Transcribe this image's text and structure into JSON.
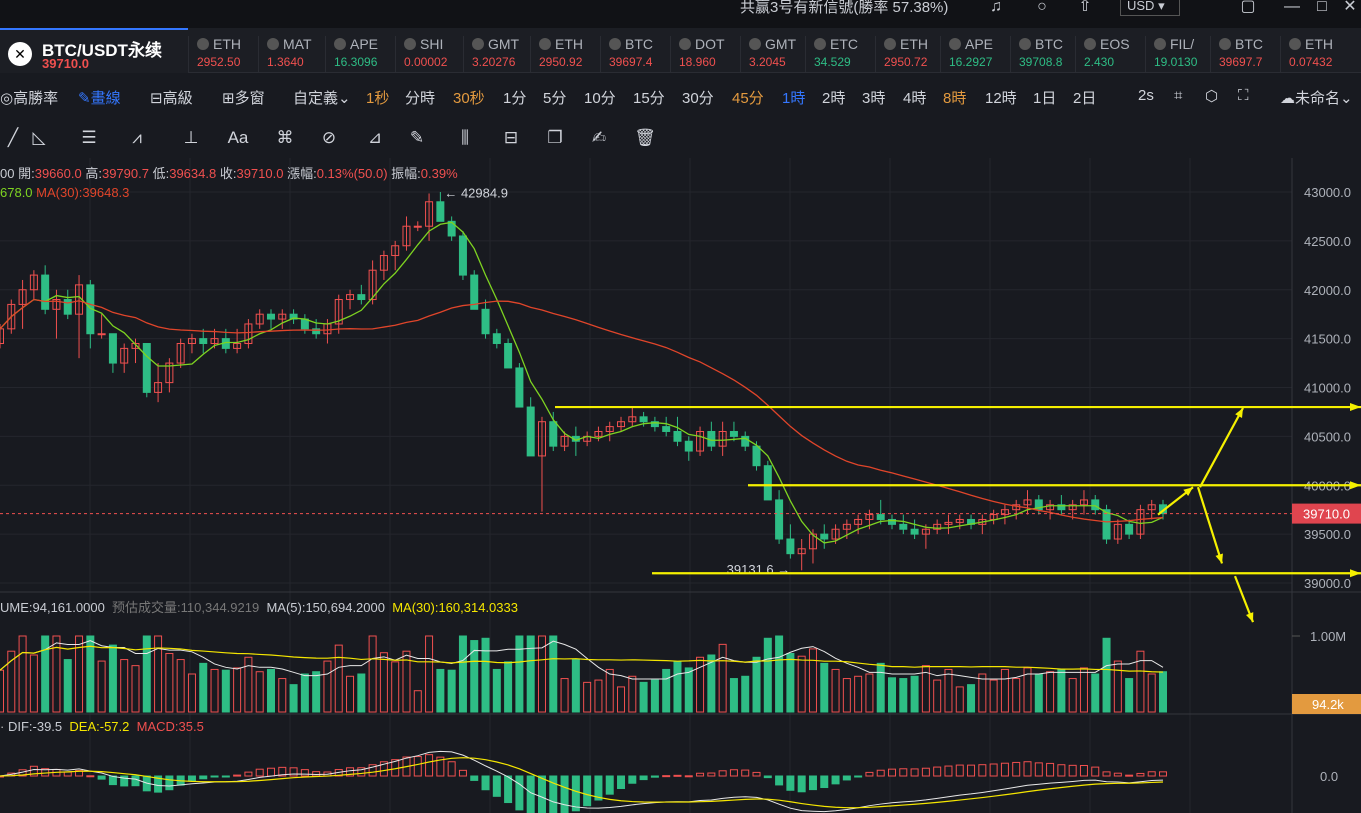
{
  "topbar": {
    "promo": "共赢3号有新信號(勝率 57.38%)",
    "currency": "USD"
  },
  "symbol": {
    "name": "BTC/USDT永续",
    "price": "39710.0",
    "logo": "✕"
  },
  "tickers": [
    {
      "sym": "ETH",
      "price": "2952.50",
      "color": "#f0504f"
    },
    {
      "sym": "MAT",
      "price": "1.3640",
      "color": "#f0504f"
    },
    {
      "sym": "APE",
      "price": "16.3096",
      "color": "#2ebd85"
    },
    {
      "sym": "SHI",
      "price": "0.00002",
      "color": "#f0504f"
    },
    {
      "sym": "GMT",
      "price": "3.20276",
      "color": "#f0504f"
    },
    {
      "sym": "ETH",
      "price": "2950.92",
      "color": "#f0504f"
    },
    {
      "sym": "BTC",
      "price": "39697.4",
      "color": "#f0504f"
    },
    {
      "sym": "DOT",
      "price": "18.960",
      "color": "#f0504f"
    },
    {
      "sym": "GMT",
      "price": "3.2045",
      "color": "#f0504f"
    },
    {
      "sym": "ETC",
      "price": "34.529",
      "color": "#2ebd85"
    },
    {
      "sym": "ETH",
      "price": "2950.72",
      "color": "#f0504f"
    },
    {
      "sym": "APE",
      "price": "16.2927",
      "color": "#2ebd85"
    },
    {
      "sym": "BTC",
      "price": "39708.8",
      "color": "#2ebd85"
    },
    {
      "sym": "EOS",
      "price": "2.430",
      "color": "#2ebd85"
    },
    {
      "sym": "FIL/",
      "price": "19.0130",
      "color": "#2ebd85"
    },
    {
      "sym": "BTC",
      "price": "39697.7",
      "color": "#f0504f"
    },
    {
      "sym": "ETH",
      "price": "0.07432",
      "color": "#f0504f"
    }
  ],
  "intervals": {
    "left": [
      "高勝率",
      "畫線",
      "高級",
      "多窗",
      "自定義"
    ],
    "times": [
      "1秒",
      "分時",
      "30秒",
      "1分",
      "5分",
      "10分",
      "15分",
      "30分",
      "45分",
      "1時",
      "2時",
      "3時",
      "4時",
      "8時",
      "12時",
      "1日",
      "2日"
    ],
    "highlight_orange": [
      "1秒",
      "30秒",
      "45分",
      "8時"
    ],
    "highlight_blue": [
      "畫線",
      "1時"
    ],
    "right_label": "2s",
    "template": "未命名"
  },
  "tools": [
    "line-tool",
    "ray-tool",
    "parallel-tool",
    "wave-tool",
    "fib-tool",
    "text-tool",
    "brush-tool",
    "magnet-tool",
    "ruler-tool",
    "pen-tool",
    "compare-tool",
    "lock-tool",
    "copy-tool",
    "edit-tool",
    "delete-tool"
  ],
  "ohlc": {
    "open_label": "開:",
    "open": "39660.0",
    "high_label": "高:",
    "high": "39790.7",
    "low_label": "低:",
    "low": "39634.8",
    "close_label": "收:",
    "close": "39710.0",
    "change_label": "漲幅:",
    "change": "0.13%(50.0)",
    "amp_label": "振幅:",
    "amp": "0.39%",
    "prefix": "00"
  },
  "ma_legend": {
    "ma5": "678.0",
    "ma30_label": "MA(30):",
    "ma30": "39648.3"
  },
  "vol_legend": {
    "vol_label": "UME:",
    "vol": "94,161.0000",
    "est_label": "预估成交量:",
    "est": "110,344.9219",
    "ma5_label": "MA(5):",
    "ma5": "150,694.2000",
    "ma30_label": "MA(30):",
    "ma30": "160,314.0333"
  },
  "macd_legend": {
    "dif_label": "DIF:",
    "dif": "-39.5",
    "dea_label": "DEA:",
    "dea": "-57.2",
    "macd_label": "MACD:",
    "macd": "35.5"
  },
  "colors": {
    "up": "#f0504f",
    "down": "#2ebd85",
    "ma5": "#7ed321",
    "ma30": "#e0452a",
    "annot": "#f5f000",
    "bg": "#181a20"
  },
  "chart_data": {
    "type": "candlestick",
    "price_axis": {
      "ticks": [
        43000,
        42500,
        42000,
        41500,
        41000,
        40500,
        40000,
        39500,
        39000
      ],
      "range": [
        38880,
        43250
      ],
      "tick_labels": [
        "43000.0",
        "42500.0",
        "42000.0",
        "41500.0",
        "41000.0",
        "40500.0",
        "40000.0",
        "39500.0",
        "39000.0"
      ]
    },
    "high_label": "42984.9",
    "low_label": "39131.6",
    "last_price": "39710.0",
    "candles_ohlc": [
      [
        41450,
        41650,
        41400,
        41600
      ],
      [
        41600,
        41900,
        41550,
        41850
      ],
      [
        41850,
        42100,
        41600,
        42000
      ],
      [
        42000,
        42200,
        41900,
        42150
      ],
      [
        42150,
        42250,
        41750,
        41800
      ],
      [
        41800,
        42000,
        41500,
        41900
      ],
      [
        41900,
        42000,
        41700,
        41750
      ],
      [
        41750,
        42150,
        41300,
        42050
      ],
      [
        42050,
        42100,
        41400,
        41550
      ],
      [
        41550,
        41750,
        41500,
        41550
      ],
      [
        41550,
        41550,
        41150,
        41250
      ],
      [
        41250,
        41450,
        41150,
        41400
      ],
      [
        41400,
        41500,
        41250,
        41450
      ],
      [
        41450,
        41450,
        40900,
        40950
      ],
      [
        40950,
        41250,
        40850,
        41050
      ],
      [
        41050,
        41300,
        40950,
        41250
      ],
      [
        41250,
        41500,
        41200,
        41450
      ],
      [
        41450,
        41550,
        41350,
        41500
      ],
      [
        41500,
        41600,
        41350,
        41450
      ],
      [
        41450,
        41600,
        41400,
        41500
      ],
      [
        41500,
        41600,
        41350,
        41400
      ],
      [
        41400,
        41600,
        41350,
        41450
      ],
      [
        41450,
        41700,
        41400,
        41650
      ],
      [
        41650,
        41800,
        41600,
        41750
      ],
      [
        41750,
        41800,
        41600,
        41700
      ],
      [
        41700,
        41800,
        41600,
        41750
      ],
      [
        41750,
        41800,
        41650,
        41700
      ],
      [
        41700,
        41750,
        41550,
        41600
      ],
      [
        41600,
        41700,
        41500,
        41550
      ],
      [
        41550,
        41700,
        41450,
        41650
      ],
      [
        41650,
        41950,
        41550,
        41900
      ],
      [
        41900,
        42000,
        41800,
        41950
      ],
      [
        41950,
        42050,
        41850,
        41900
      ],
      [
        41900,
        42300,
        41850,
        42200
      ],
      [
        42200,
        42400,
        42100,
        42350
      ],
      [
        42350,
        42500,
        42200,
        42450
      ],
      [
        42450,
        42750,
        42400,
        42650
      ],
      [
        42650,
        42700,
        42600,
        42650
      ],
      [
        42650,
        42985,
        42500,
        42900
      ],
      [
        42900,
        43000,
        42800,
        42700
      ],
      [
        42700,
        42750,
        42500,
        42550
      ],
      [
        42550,
        42600,
        42100,
        42150
      ],
      [
        42150,
        42200,
        41800,
        41800
      ],
      [
        41800,
        41900,
        41500,
        41550
      ],
      [
        41550,
        41600,
        41400,
        41450
      ],
      [
        41450,
        41500,
        41200,
        41200
      ],
      [
        41200,
        41250,
        40800,
        40800
      ],
      [
        40800,
        40900,
        40300,
        40300
      ],
      [
        40300,
        40700,
        39730,
        40650
      ],
      [
        40650,
        40750,
        40350,
        40400
      ],
      [
        40400,
        40550,
        40350,
        40500
      ],
      [
        40500,
        40600,
        40300,
        40450
      ],
      [
        40450,
        40550,
        40400,
        40500
      ],
      [
        40500,
        40600,
        40450,
        40550
      ],
      [
        40550,
        40650,
        40450,
        40600
      ],
      [
        40600,
        40700,
        40550,
        40650
      ],
      [
        40650,
        40800,
        40600,
        40700
      ],
      [
        40700,
        40750,
        40600,
        40650
      ],
      [
        40650,
        40700,
        40550,
        40600
      ],
      [
        40600,
        40700,
        40500,
        40550
      ],
      [
        40550,
        40700,
        40400,
        40450
      ],
      [
        40450,
        40500,
        40250,
        40350
      ],
      [
        40350,
        40600,
        40300,
        40550
      ],
      [
        40550,
        40650,
        40350,
        40400
      ],
      [
        40400,
        40650,
        40300,
        40550
      ],
      [
        40550,
        40650,
        40450,
        40500
      ],
      [
        40500,
        40550,
        40350,
        40400
      ],
      [
        40400,
        40450,
        40150,
        40200
      ],
      [
        40200,
        40250,
        39850,
        39850
      ],
      [
        39850,
        39950,
        39400,
        39450
      ],
      [
        39450,
        39600,
        39250,
        39300
      ],
      [
        39300,
        39450,
        39130,
        39350
      ],
      [
        39350,
        39550,
        39200,
        39500
      ],
      [
        39500,
        39600,
        39350,
        39450
      ],
      [
        39450,
        39600,
        39400,
        39550
      ],
      [
        39550,
        39650,
        39450,
        39600
      ],
      [
        39600,
        39700,
        39500,
        39650
      ],
      [
        39650,
        39750,
        39550,
        39700
      ],
      [
        39700,
        39850,
        39600,
        39650
      ],
      [
        39650,
        39700,
        39550,
        39600
      ],
      [
        39600,
        39700,
        39500,
        39550
      ],
      [
        39550,
        39650,
        39450,
        39500
      ],
      [
        39500,
        39600,
        39350,
        39550
      ],
      [
        39550,
        39650,
        39500,
        39600
      ],
      [
        39600,
        39700,
        39500,
        39620
      ],
      [
        39620,
        39700,
        39550,
        39650
      ],
      [
        39650,
        39700,
        39550,
        39600
      ],
      [
        39600,
        39700,
        39500,
        39650
      ],
      [
        39650,
        39750,
        39600,
        39700
      ],
      [
        39700,
        39800,
        39600,
        39750
      ],
      [
        39750,
        39850,
        39650,
        39800
      ],
      [
        39800,
        39950,
        39700,
        39850
      ],
      [
        39850,
        39900,
        39700,
        39750
      ],
      [
        39750,
        39850,
        39650,
        39800
      ],
      [
        39800,
        39900,
        39700,
        39750
      ],
      [
        39750,
        39850,
        39650,
        39800
      ],
      [
        39800,
        39950,
        39700,
        39850
      ],
      [
        39850,
        39900,
        39700,
        39750
      ],
      [
        39750,
        39800,
        39400,
        39450
      ],
      [
        39450,
        39650,
        39400,
        39600
      ],
      [
        39600,
        39650,
        39450,
        39500
      ],
      [
        39500,
        39800,
        39450,
        39750
      ],
      [
        39750,
        39850,
        39650,
        39800
      ],
      [
        39800,
        39850,
        39650,
        39710
      ]
    ],
    "volume_axis": {
      "ticks": [
        "1.00M"
      ],
      "last": "94.2k"
    },
    "macd_axis": {
      "ticks": [
        "0.0"
      ]
    },
    "annotations": [
      {
        "kind": "hline",
        "price": 40800
      },
      {
        "kind": "hline",
        "price": 40000
      },
      {
        "kind": "hline",
        "price": 39100
      },
      {
        "kind": "arrow",
        "from_price": 39710,
        "to_price": 40000
      },
      {
        "kind": "arrow",
        "from_price": 40000,
        "to_price": 40780
      },
      {
        "kind": "arrow",
        "from_price": 40000,
        "to_price": 39200
      },
      {
        "kind": "arrow",
        "from_price": 39100,
        "to_price": 38400
      }
    ]
  }
}
